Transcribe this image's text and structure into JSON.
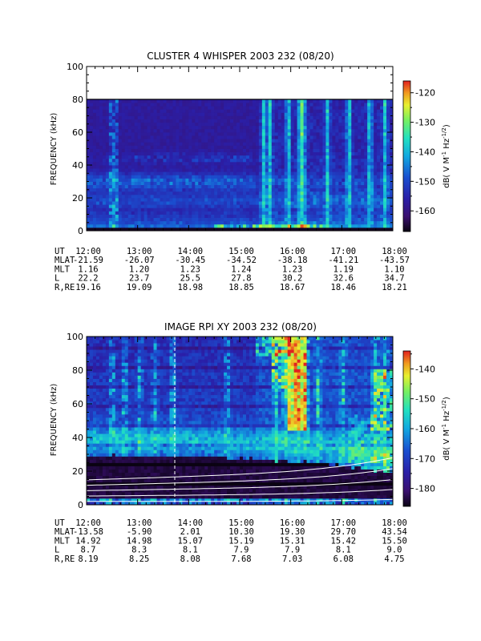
{
  "chart_data": [
    {
      "type": "heatmap",
      "title": "CLUSTER 4 WHISPER 2003 232 (08/20)",
      "ylabel": "FREQUENCY (kHz)",
      "ylim": [
        0,
        100
      ],
      "yticks": [
        "0",
        "20",
        "40",
        "60",
        "80",
        "100"
      ],
      "xlabel": "UT",
      "xticks": [
        "12:00",
        "13:00",
        "14:00",
        "15:00",
        "16:00",
        "17:00",
        "18:00"
      ],
      "data_extent_khz": [
        0,
        80
      ],
      "colorbar": {
        "label": "dB( V M⁻¹ Hz⁻¹ᐟ²)",
        "label_parts": [
          "dB( V M",
          "-1",
          " Hz",
          "-1/2",
          ")"
        ],
        "ticks": [
          "-120",
          "-130",
          "-140",
          "-150",
          "-160"
        ],
        "tick_values": [
          -120,
          -130,
          -140,
          -150,
          -160
        ],
        "range": [
          -167,
          -116
        ]
      },
      "ephemeris": [
        {
          "name": "UT",
          "values": [
            "12:00",
            "13:00",
            "14:00",
            "15:00",
            "16:00",
            "17:00",
            "18:00"
          ]
        },
        {
          "name": "MLAT",
          "values": [
            "-21.59",
            "-26.07",
            "-30.45",
            "-34.52",
            "-38.18",
            "-41.21",
            "-43.57"
          ]
        },
        {
          "name": "MLT",
          "values": [
            "1.16",
            "1.20",
            "1.23",
            "1.24",
            "1.23",
            "1.19",
            "1.10"
          ]
        },
        {
          "name": "L",
          "values": [
            "22.2",
            "23.7",
            "25.5",
            "27.8",
            "30.2",
            "32.6",
            "34.7"
          ]
        },
        {
          "name": "R,RE",
          "values": [
            "19.16",
            "19.09",
            "18.98",
            "18.85",
            "18.67",
            "18.46",
            "18.21"
          ]
        }
      ]
    },
    {
      "type": "heatmap",
      "title": "IMAGE RPI XY 2003 232 (08/20)",
      "ylabel": "FREQUENCY (kHz)",
      "ylim": [
        0,
        100
      ],
      "yticks": [
        "0",
        "20",
        "40",
        "60",
        "80",
        "100"
      ],
      "xlabel": "UT",
      "xticks": [
        "12:00",
        "13:00",
        "14:00",
        "15:00",
        "16:00",
        "17:00",
        "18:00"
      ],
      "colorbar": {
        "label": "dB( V M⁻¹ Hz⁻¹ᐟ²)",
        "label_parts": [
          "dB( V M",
          "-1",
          " Hz",
          "-1/2",
          ")"
        ],
        "ticks": [
          "-140",
          "-150",
          "-160",
          "-170",
          "-180"
        ],
        "tick_values": [
          -140,
          -150,
          -160,
          -170,
          -180
        ],
        "range": [
          -186,
          -134
        ]
      },
      "ephemeris": [
        {
          "name": "UT",
          "values": [
            "12:00",
            "13:00",
            "14:00",
            "15:00",
            "16:00",
            "17:00",
            "18:00"
          ]
        },
        {
          "name": "MLAT",
          "values": [
            "-13.58",
            "-5.90",
            "2.01",
            "10.30",
            "19.30",
            "29.70",
            "43.54"
          ]
        },
        {
          "name": "MLT",
          "values": [
            "14.92",
            "14.98",
            "15.07",
            "15.19",
            "15.31",
            "15.42",
            "15.50"
          ]
        },
        {
          "name": "L",
          "values": [
            "8.7",
            "8.3",
            "8.1",
            "7.9",
            "7.9",
            "8.1",
            "9.0"
          ]
        },
        {
          "name": "R,RE",
          "values": [
            "8.19",
            "8.25",
            "8.08",
            "7.68",
            "7.03",
            "6.08",
            "4.75"
          ]
        }
      ]
    }
  ],
  "colors": {
    "palette": [
      "#0a0312",
      "#3a1070",
      "#2a1fa8",
      "#1a4fd0",
      "#12a8e0",
      "#22e0c0",
      "#78f060",
      "#e8f030",
      "#f09a20",
      "#e02020"
    ]
  }
}
